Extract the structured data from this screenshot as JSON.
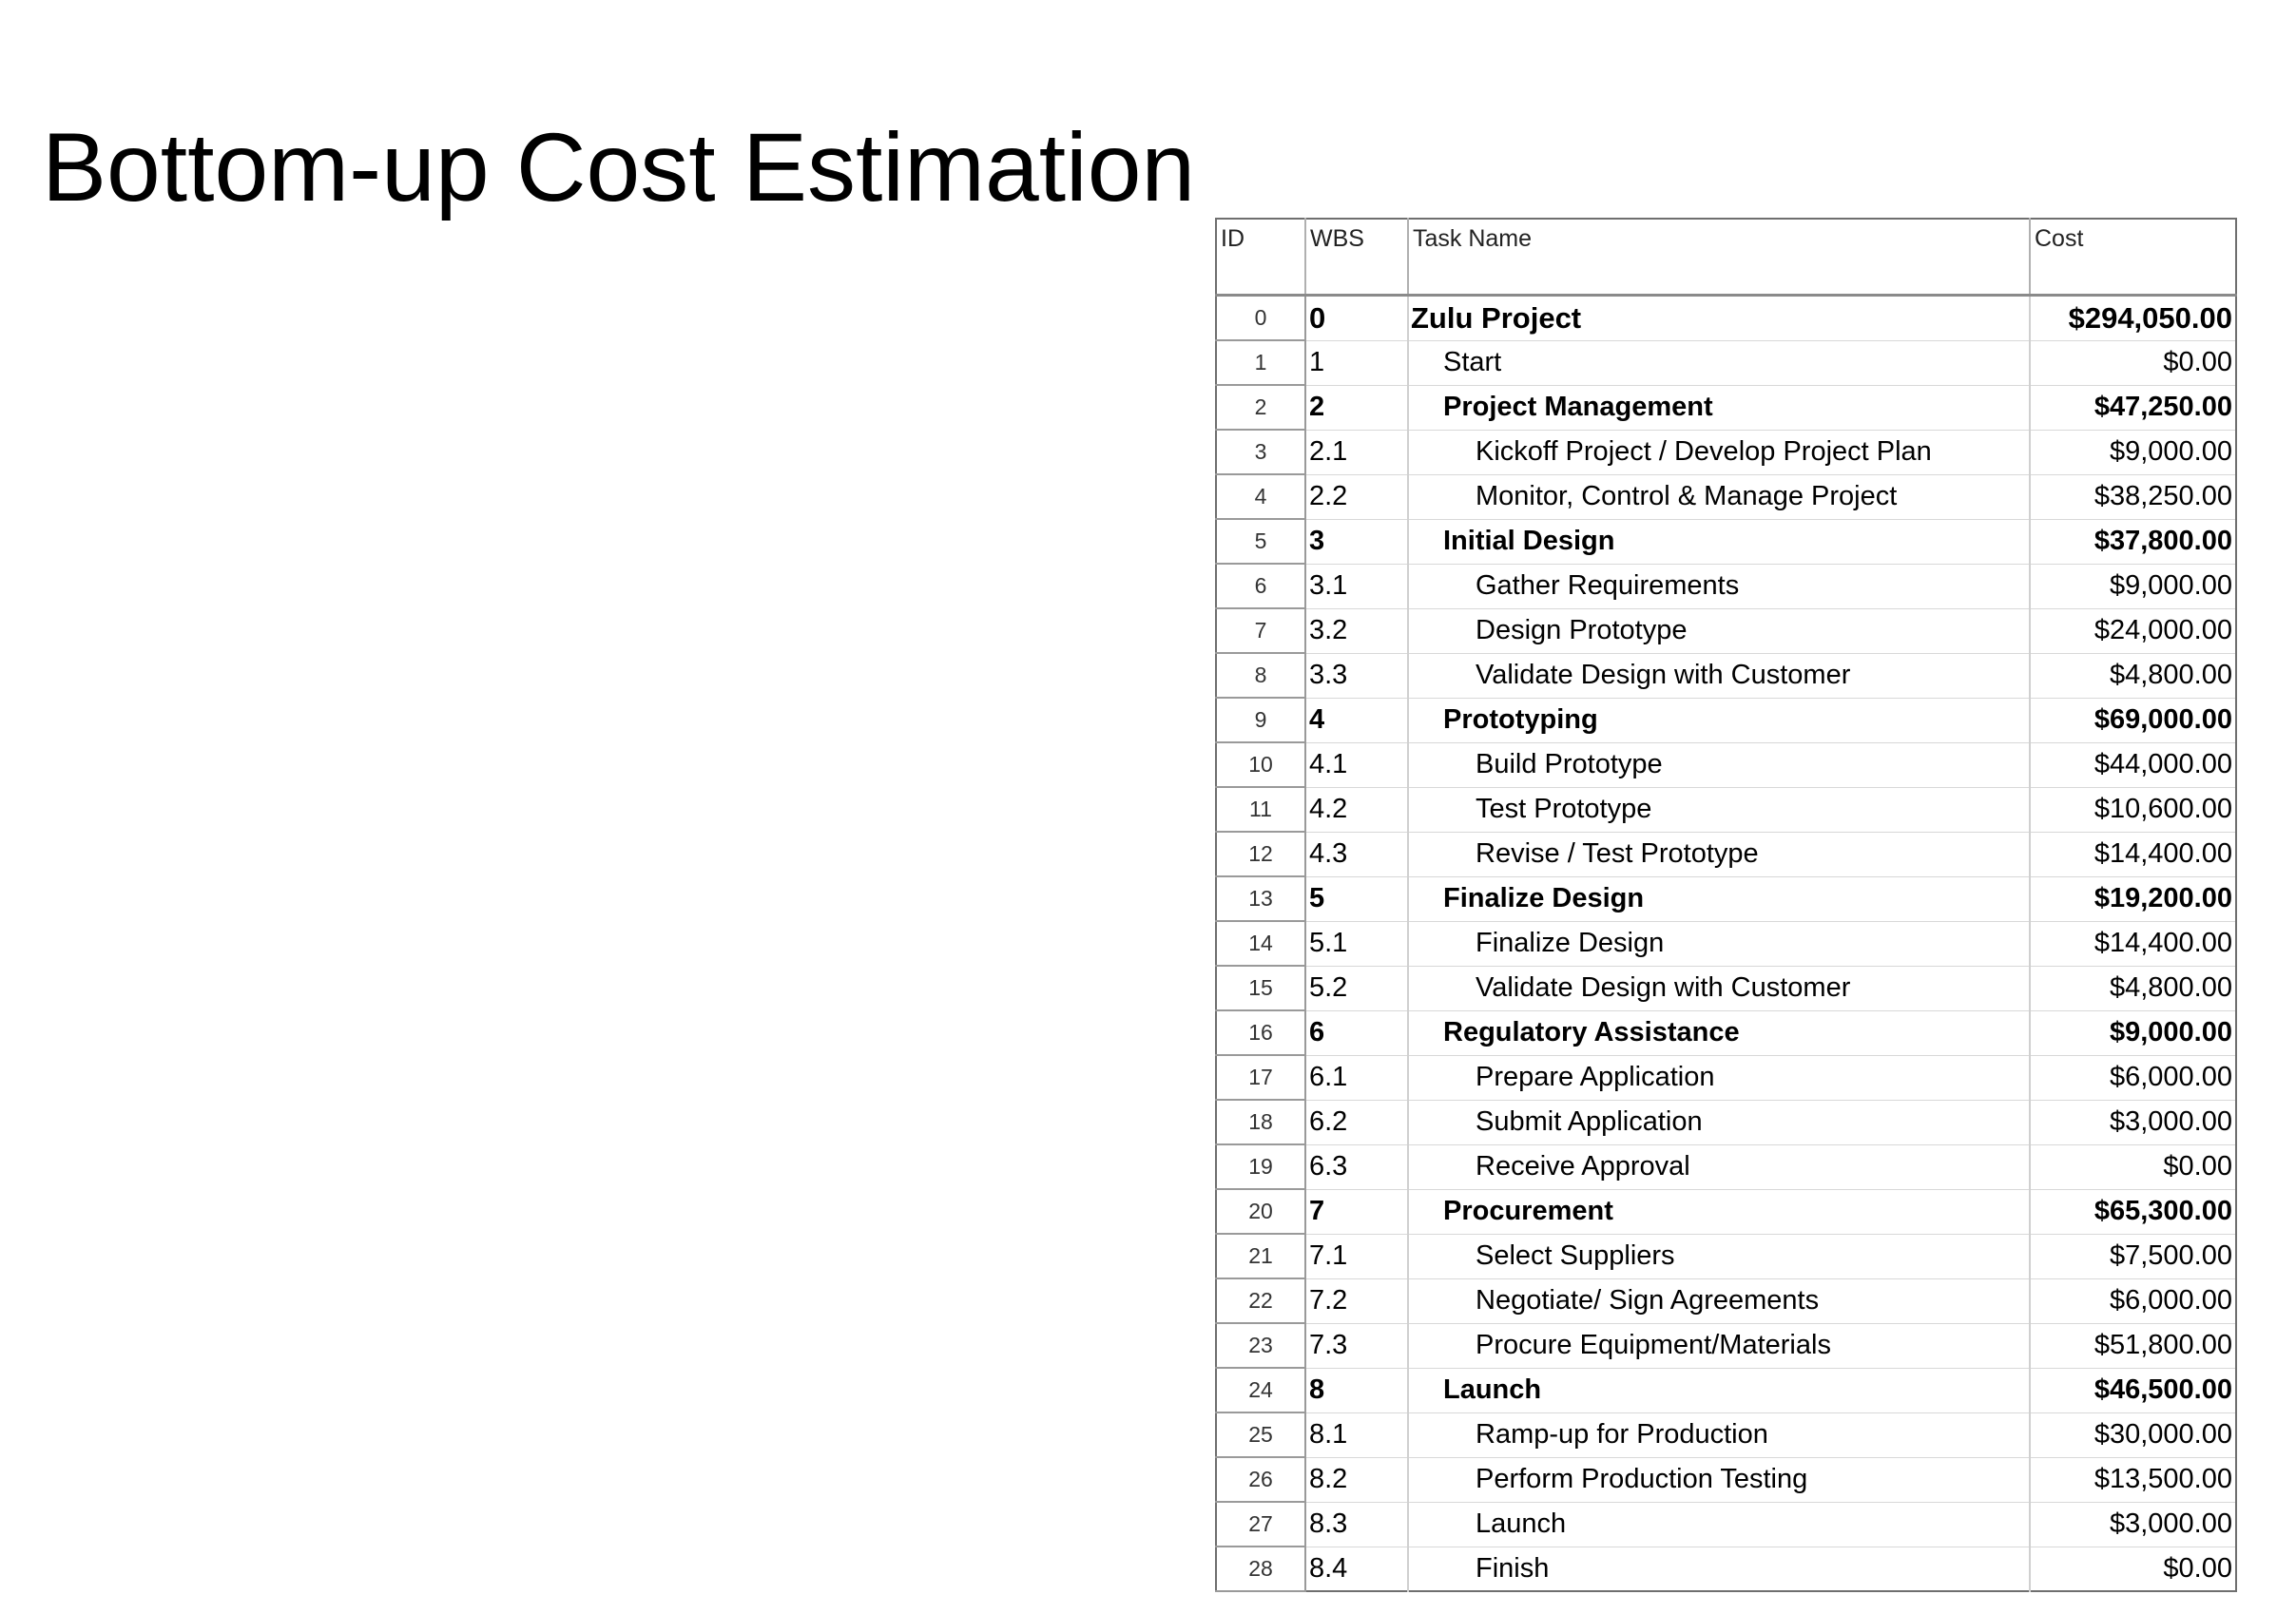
{
  "title": "Bottom-up Cost Estimation",
  "table": {
    "headers": {
      "id": "ID",
      "wbs": "WBS",
      "task": "Task Name",
      "cost": "Cost"
    },
    "rows": [
      {
        "id": "0",
        "wbs": "0",
        "task": "Zulu Project",
        "cost": "$294,050.00",
        "level": 0,
        "bold": true
      },
      {
        "id": "1",
        "wbs": "1",
        "task": "Start",
        "cost": "$0.00",
        "level": 1,
        "bold": false
      },
      {
        "id": "2",
        "wbs": "2",
        "task": "Project Management",
        "cost": "$47,250.00",
        "level": 1,
        "bold": true
      },
      {
        "id": "3",
        "wbs": "2.1",
        "task": "Kickoff Project / Develop Project Plan",
        "cost": "$9,000.00",
        "level": 2,
        "bold": false
      },
      {
        "id": "4",
        "wbs": "2.2",
        "task": "Monitor, Control & Manage Project",
        "cost": "$38,250.00",
        "level": 2,
        "bold": false
      },
      {
        "id": "5",
        "wbs": "3",
        "task": "Initial Design",
        "cost": "$37,800.00",
        "level": 1,
        "bold": true
      },
      {
        "id": "6",
        "wbs": "3.1",
        "task": "Gather Requirements",
        "cost": "$9,000.00",
        "level": 2,
        "bold": false
      },
      {
        "id": "7",
        "wbs": "3.2",
        "task": "Design Prototype",
        "cost": "$24,000.00",
        "level": 2,
        "bold": false
      },
      {
        "id": "8",
        "wbs": "3.3",
        "task": "Validate Design with Customer",
        "cost": "$4,800.00",
        "level": 2,
        "bold": false
      },
      {
        "id": "9",
        "wbs": "4",
        "task": "Prototyping",
        "cost": "$69,000.00",
        "level": 1,
        "bold": true
      },
      {
        "id": "10",
        "wbs": "4.1",
        "task": "Build Prototype",
        "cost": "$44,000.00",
        "level": 2,
        "bold": false
      },
      {
        "id": "11",
        "wbs": "4.2",
        "task": "Test Prototype",
        "cost": "$10,600.00",
        "level": 2,
        "bold": false
      },
      {
        "id": "12",
        "wbs": "4.3",
        "task": "Revise / Test Prototype",
        "cost": "$14,400.00",
        "level": 2,
        "bold": false
      },
      {
        "id": "13",
        "wbs": "5",
        "task": "Finalize Design",
        "cost": "$19,200.00",
        "level": 1,
        "bold": true
      },
      {
        "id": "14",
        "wbs": "5.1",
        "task": "Finalize Design",
        "cost": "$14,400.00",
        "level": 2,
        "bold": false
      },
      {
        "id": "15",
        "wbs": "5.2",
        "task": "Validate Design with Customer",
        "cost": "$4,800.00",
        "level": 2,
        "bold": false
      },
      {
        "id": "16",
        "wbs": "6",
        "task": "Regulatory Assistance",
        "cost": "$9,000.00",
        "level": 1,
        "bold": true
      },
      {
        "id": "17",
        "wbs": "6.1",
        "task": "Prepare Application",
        "cost": "$6,000.00",
        "level": 2,
        "bold": false
      },
      {
        "id": "18",
        "wbs": "6.2",
        "task": "Submit Application",
        "cost": "$3,000.00",
        "level": 2,
        "bold": false
      },
      {
        "id": "19",
        "wbs": "6.3",
        "task": "Receive Approval",
        "cost": "$0.00",
        "level": 2,
        "bold": false
      },
      {
        "id": "20",
        "wbs": "7",
        "task": "Procurement",
        "cost": "$65,300.00",
        "level": 1,
        "bold": true
      },
      {
        "id": "21",
        "wbs": "7.1",
        "task": "Select Suppliers",
        "cost": "$7,500.00",
        "level": 2,
        "bold": false
      },
      {
        "id": "22",
        "wbs": "7.2",
        "task": "Negotiate/ Sign Agreements",
        "cost": "$6,000.00",
        "level": 2,
        "bold": false
      },
      {
        "id": "23",
        "wbs": "7.3",
        "task": "Procure Equipment/Materials",
        "cost": "$51,800.00",
        "level": 2,
        "bold": false
      },
      {
        "id": "24",
        "wbs": "8",
        "task": "Launch",
        "cost": "$46,500.00",
        "level": 1,
        "bold": true
      },
      {
        "id": "25",
        "wbs": "8.1",
        "task": "Ramp-up for Production",
        "cost": "$30,000.00",
        "level": 2,
        "bold": false
      },
      {
        "id": "26",
        "wbs": "8.2",
        "task": "Perform Production Testing",
        "cost": "$13,500.00",
        "level": 2,
        "bold": false
      },
      {
        "id": "27",
        "wbs": "8.3",
        "task": "Launch",
        "cost": "$3,000.00",
        "level": 2,
        "bold": false
      },
      {
        "id": "28",
        "wbs": "8.4",
        "task": "Finish",
        "cost": "$0.00",
        "level": 2,
        "bold": false
      }
    ]
  }
}
